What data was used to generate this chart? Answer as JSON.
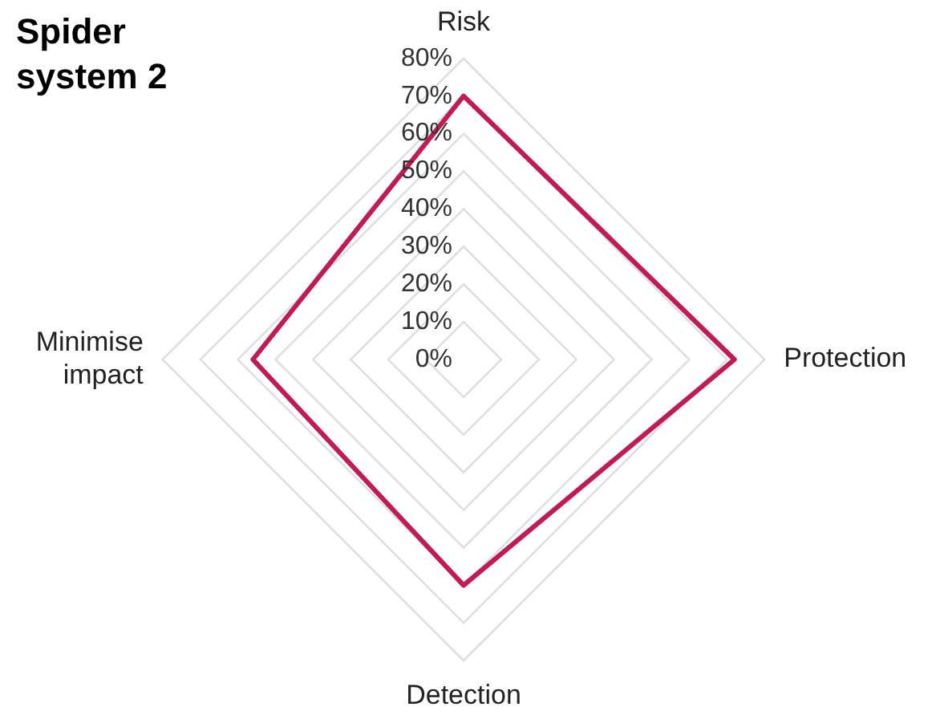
{
  "chart_data": {
    "type": "radar",
    "title": "Spider system 2",
    "categories": [
      "Risk",
      "Protection",
      "Detection",
      "Minimise impact"
    ],
    "series": [
      {
        "color": "#c21a55",
        "values": [
          70,
          72,
          60,
          56
        ]
      }
    ],
    "ylim": [
      0,
      80
    ],
    "yticks": [
      {
        "value": 0,
        "label": "0%"
      },
      {
        "value": 10,
        "label": "10%"
      },
      {
        "value": 20,
        "label": "20%"
      },
      {
        "value": 30,
        "label": "30%"
      },
      {
        "value": 40,
        "label": "40%"
      },
      {
        "value": 50,
        "label": "50%"
      },
      {
        "value": 60,
        "label": "60%"
      },
      {
        "value": 70,
        "label": "70%"
      },
      {
        "value": 80,
        "label": "80%"
      }
    ],
    "grid": true,
    "legend": false,
    "marker": "none"
  }
}
